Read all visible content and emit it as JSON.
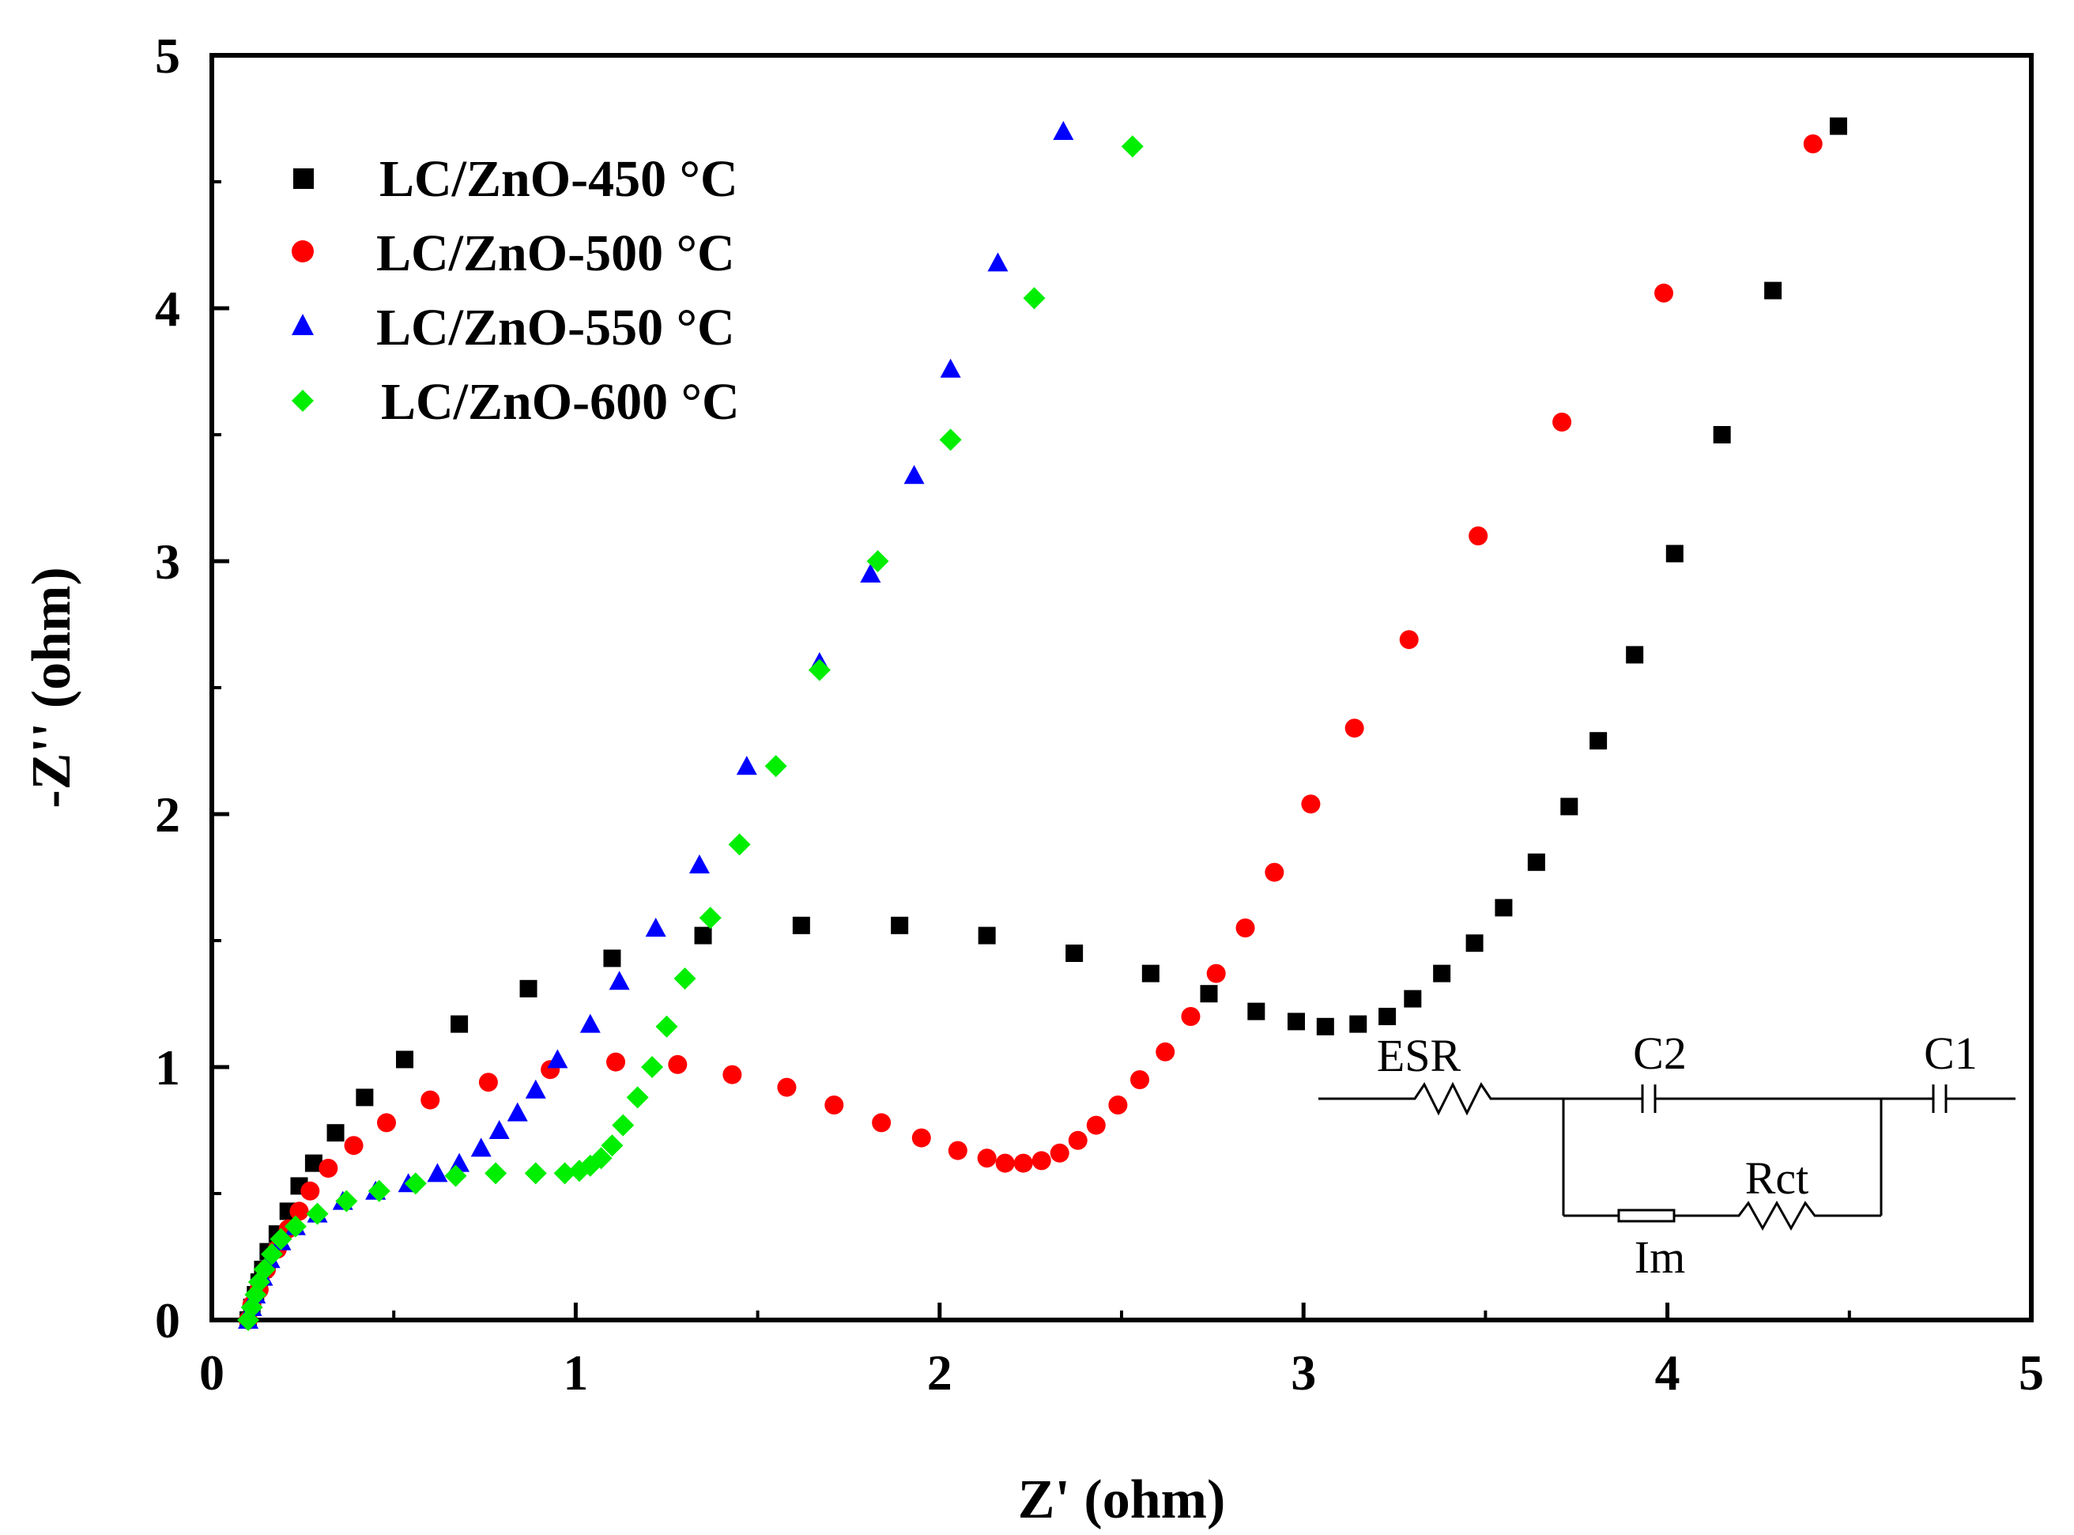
{
  "chart_data": {
    "type": "scatter",
    "title": "",
    "xlabel": "Z' (ohm)",
    "ylabel": "-Z'' (ohm)",
    "xlim": [
      0,
      5
    ],
    "ylim": [
      0,
      5
    ],
    "grid": false,
    "xticks": [
      "0",
      "1",
      "2",
      "3",
      "4",
      "5"
    ],
    "yticks": [
      "0",
      "1",
      "2",
      "3",
      "4",
      "5"
    ],
    "legend_position": "top-left",
    "series": [
      {
        "name": "LC/ZnO-450 °C",
        "marker": "square",
        "color": "#000000",
        "points": [
          [
            0.1,
            0.0
          ],
          [
            0.11,
            0.05
          ],
          [
            0.12,
            0.1
          ],
          [
            0.13,
            0.15
          ],
          [
            0.14,
            0.2
          ],
          [
            0.155,
            0.27
          ],
          [
            0.18,
            0.34
          ],
          [
            0.21,
            0.43
          ],
          [
            0.24,
            0.53
          ],
          [
            0.28,
            0.62
          ],
          [
            0.34,
            0.74
          ],
          [
            0.42,
            0.88
          ],
          [
            0.53,
            1.03
          ],
          [
            0.68,
            1.17
          ],
          [
            0.87,
            1.31
          ],
          [
            1.1,
            1.43
          ],
          [
            1.35,
            1.52
          ],
          [
            1.62,
            1.56
          ],
          [
            1.89,
            1.56
          ],
          [
            2.13,
            1.52
          ],
          [
            2.37,
            1.45
          ],
          [
            2.58,
            1.37
          ],
          [
            2.74,
            1.29
          ],
          [
            2.87,
            1.22
          ],
          [
            2.98,
            1.18
          ],
          [
            3.06,
            1.16
          ],
          [
            3.15,
            1.17
          ],
          [
            3.23,
            1.2
          ],
          [
            3.3,
            1.27
          ],
          [
            3.38,
            1.37
          ],
          [
            3.47,
            1.49
          ],
          [
            3.55,
            1.63
          ],
          [
            3.64,
            1.81
          ],
          [
            3.73,
            2.03
          ],
          [
            3.81,
            2.29
          ],
          [
            3.91,
            2.63
          ],
          [
            4.02,
            3.03
          ],
          [
            4.15,
            3.5
          ],
          [
            4.29,
            4.07
          ],
          [
            4.47,
            4.72
          ]
        ]
      },
      {
        "name": "LC/ZnO-500 °C",
        "marker": "circle",
        "color": "#ff0000",
        "points": [
          [
            0.1,
            0.0
          ],
          [
            0.11,
            0.06
          ],
          [
            0.13,
            0.12
          ],
          [
            0.15,
            0.2
          ],
          [
            0.18,
            0.28
          ],
          [
            0.21,
            0.36
          ],
          [
            0.24,
            0.43
          ],
          [
            0.27,
            0.51
          ],
          [
            0.32,
            0.6
          ],
          [
            0.39,
            0.69
          ],
          [
            0.48,
            0.78
          ],
          [
            0.6,
            0.87
          ],
          [
            0.76,
            0.94
          ],
          [
            0.93,
            0.99
          ],
          [
            1.11,
            1.02
          ],
          [
            1.28,
            1.01
          ],
          [
            1.43,
            0.97
          ],
          [
            1.58,
            0.92
          ],
          [
            1.71,
            0.85
          ],
          [
            1.84,
            0.78
          ],
          [
            1.95,
            0.72
          ],
          [
            2.05,
            0.67
          ],
          [
            2.13,
            0.64
          ],
          [
            2.18,
            0.62
          ],
          [
            2.23,
            0.62
          ],
          [
            2.28,
            0.63
          ],
          [
            2.33,
            0.66
          ],
          [
            2.38,
            0.71
          ],
          [
            2.43,
            0.77
          ],
          [
            2.49,
            0.85
          ],
          [
            2.55,
            0.95
          ],
          [
            2.62,
            1.06
          ],
          [
            2.69,
            1.2
          ],
          [
            2.76,
            1.37
          ],
          [
            2.84,
            1.55
          ],
          [
            2.92,
            1.77
          ],
          [
            3.02,
            2.04
          ],
          [
            3.14,
            2.34
          ],
          [
            3.29,
            2.69
          ],
          [
            3.48,
            3.1
          ],
          [
            3.71,
            3.55
          ],
          [
            3.99,
            4.06
          ],
          [
            4.4,
            4.65
          ]
        ]
      },
      {
        "name": "LC/ZnO-550 °C",
        "marker": "triangle",
        "color": "#0000ff",
        "points": [
          [
            0.1,
            0.0
          ],
          [
            0.11,
            0.05
          ],
          [
            0.12,
            0.1
          ],
          [
            0.14,
            0.17
          ],
          [
            0.16,
            0.24
          ],
          [
            0.19,
            0.31
          ],
          [
            0.23,
            0.37
          ],
          [
            0.29,
            0.42
          ],
          [
            0.36,
            0.47
          ],
          [
            0.45,
            0.51
          ],
          [
            0.54,
            0.54
          ],
          [
            0.62,
            0.58
          ],
          [
            0.68,
            0.62
          ],
          [
            0.74,
            0.68
          ],
          [
            0.79,
            0.75
          ],
          [
            0.84,
            0.82
          ],
          [
            0.89,
            0.91
          ],
          [
            0.95,
            1.03
          ],
          [
            1.04,
            1.17
          ],
          [
            1.12,
            1.34
          ],
          [
            1.22,
            1.55
          ],
          [
            1.34,
            1.8
          ],
          [
            1.47,
            2.19
          ],
          [
            1.67,
            2.6
          ],
          [
            1.81,
            2.95
          ],
          [
            1.93,
            3.34
          ],
          [
            2.03,
            3.76
          ],
          [
            2.16,
            4.18
          ],
          [
            2.34,
            4.7
          ]
        ]
      },
      {
        "name": "LC/ZnO-600 °C",
        "marker": "diamond",
        "color": "#00ee00",
        "points": [
          [
            0.1,
            0.0
          ],
          [
            0.11,
            0.05
          ],
          [
            0.12,
            0.1
          ],
          [
            0.13,
            0.15
          ],
          [
            0.145,
            0.2
          ],
          [
            0.165,
            0.26
          ],
          [
            0.19,
            0.32
          ],
          [
            0.23,
            0.37
          ],
          [
            0.29,
            0.42
          ],
          [
            0.37,
            0.47
          ],
          [
            0.46,
            0.51
          ],
          [
            0.56,
            0.54
          ],
          [
            0.67,
            0.57
          ],
          [
            0.78,
            0.58
          ],
          [
            0.89,
            0.58
          ],
          [
            0.97,
            0.58
          ],
          [
            1.01,
            0.59
          ],
          [
            1.04,
            0.61
          ],
          [
            1.07,
            0.64
          ],
          [
            1.1,
            0.69
          ],
          [
            1.13,
            0.77
          ],
          [
            1.17,
            0.88
          ],
          [
            1.21,
            1.0
          ],
          [
            1.25,
            1.16
          ],
          [
            1.3,
            1.35
          ],
          [
            1.37,
            1.59
          ],
          [
            1.45,
            1.88
          ],
          [
            1.55,
            2.19
          ],
          [
            1.67,
            2.57
          ],
          [
            1.83,
            3.0
          ],
          [
            2.03,
            3.48
          ],
          [
            2.26,
            4.04
          ],
          [
            2.53,
            4.64
          ]
        ]
      }
    ],
    "inset_circuit": {
      "labels": [
        "ESR",
        "C2",
        "C1",
        "Rct",
        "Im"
      ]
    }
  }
}
